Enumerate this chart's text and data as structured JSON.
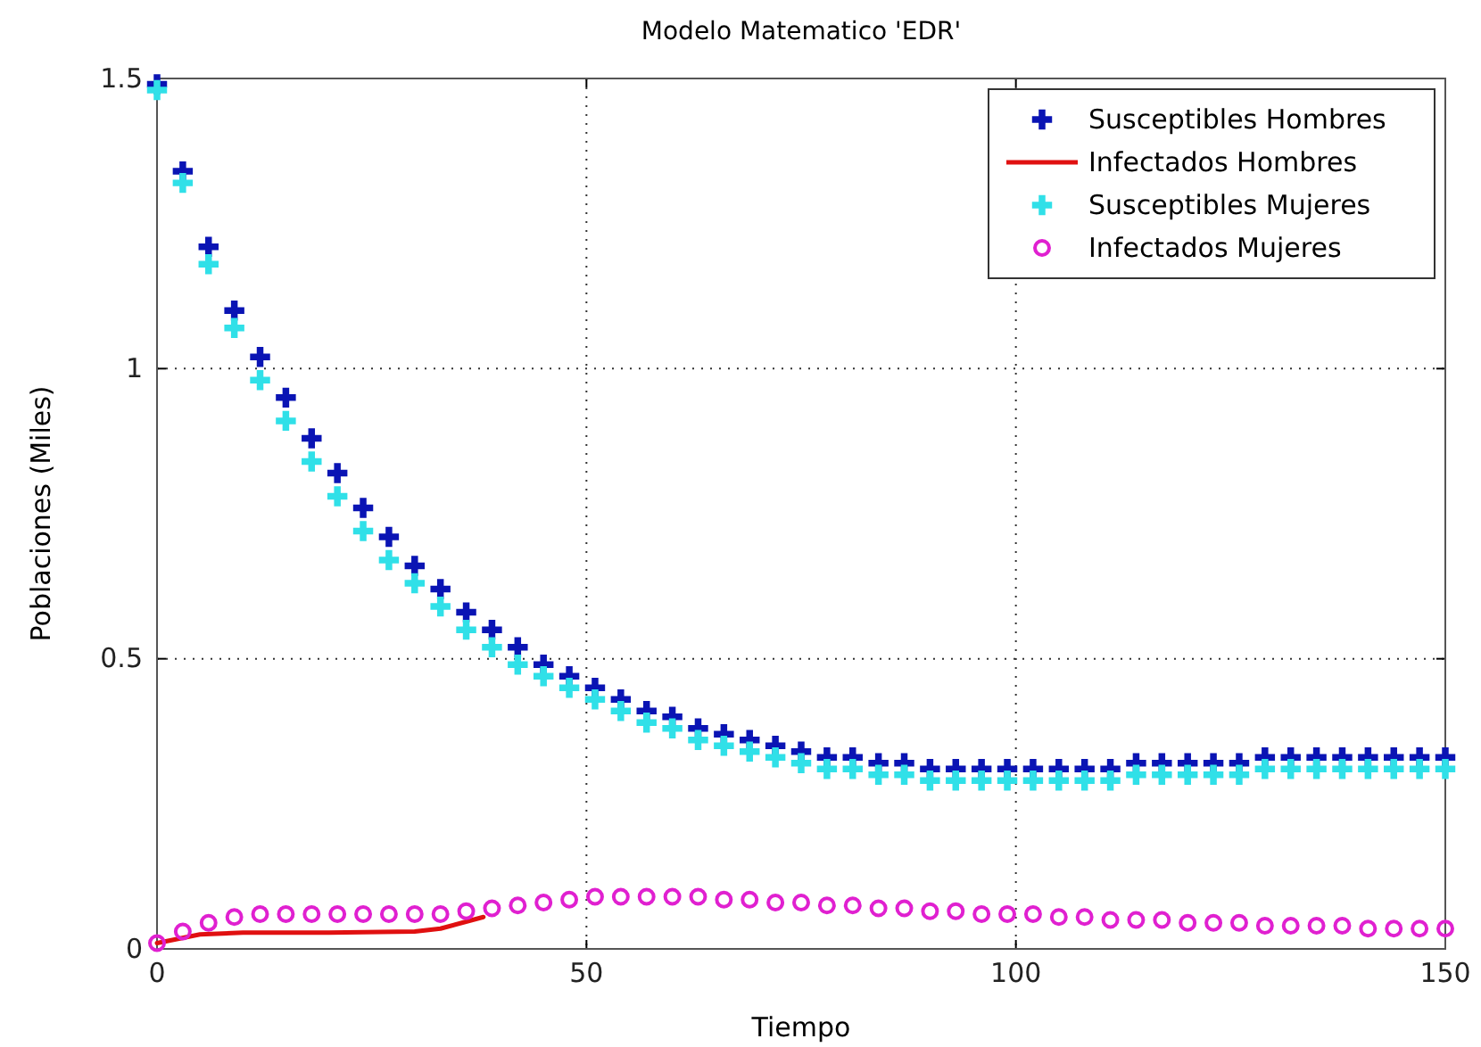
{
  "chart_data": {
    "type": "scatter",
    "title": "Modelo Matematico 'EDR'",
    "xlabel": "Tiempo",
    "ylabel": "Poblaciones (Miles)",
    "xlim": [
      0,
      150
    ],
    "ylim": [
      0,
      1.5
    ],
    "xticks": [
      0,
      50,
      100,
      150
    ],
    "yticks": [
      0,
      0.5,
      1,
      1.5
    ],
    "grid": true,
    "legend": "top right",
    "x": [
      0,
      3,
      6,
      9,
      12,
      15,
      18,
      21,
      24,
      27,
      30,
      33,
      36,
      39,
      42,
      45,
      48,
      51,
      54,
      57,
      60,
      63,
      66,
      69,
      72,
      75,
      78,
      81,
      84,
      87,
      90,
      93,
      96,
      99,
      102,
      105,
      108,
      111,
      114,
      117,
      120,
      123,
      126,
      129,
      132,
      135,
      138,
      141,
      144,
      147,
      150
    ],
    "series": [
      {
        "name": "Susceptibles Hombres",
        "marker": "cross",
        "color": "#0a14b4",
        "values": [
          1.49,
          1.34,
          1.21,
          1.1,
          1.02,
          0.95,
          0.88,
          0.82,
          0.76,
          0.71,
          0.66,
          0.62,
          0.58,
          0.55,
          0.52,
          0.49,
          0.47,
          0.45,
          0.43,
          0.41,
          0.4,
          0.38,
          0.37,
          0.36,
          0.35,
          0.34,
          0.33,
          0.33,
          0.32,
          0.32,
          0.31,
          0.31,
          0.31,
          0.31,
          0.31,
          0.31,
          0.31,
          0.31,
          0.32,
          0.32,
          0.32,
          0.32,
          0.32,
          0.33,
          0.33,
          0.33,
          0.33,
          0.33,
          0.33,
          0.33,
          0.33
        ]
      },
      {
        "name": "Infectados Hombres",
        "type": "line",
        "marker": "none",
        "color": "#e01010",
        "x": [
          0,
          5,
          10,
          20,
          30,
          33,
          38
        ],
        "values": [
          0.01,
          0.025,
          0.028,
          0.028,
          0.03,
          0.035,
          0.055
        ]
      },
      {
        "name": "Susceptibles Mujeres",
        "marker": "cross",
        "color": "#30e0e8",
        "values": [
          1.48,
          1.32,
          1.18,
          1.07,
          0.98,
          0.91,
          0.84,
          0.78,
          0.72,
          0.67,
          0.63,
          0.59,
          0.55,
          0.52,
          0.49,
          0.47,
          0.45,
          0.43,
          0.41,
          0.39,
          0.38,
          0.36,
          0.35,
          0.34,
          0.33,
          0.32,
          0.31,
          0.31,
          0.3,
          0.3,
          0.29,
          0.29,
          0.29,
          0.29,
          0.29,
          0.29,
          0.29,
          0.29,
          0.3,
          0.3,
          0.3,
          0.3,
          0.3,
          0.31,
          0.31,
          0.31,
          0.31,
          0.31,
          0.31,
          0.31,
          0.31
        ]
      },
      {
        "name": "Infectados Mujeres",
        "marker": "circle",
        "color": "#e020d0",
        "values": [
          0.01,
          0.03,
          0.045,
          0.055,
          0.06,
          0.06,
          0.06,
          0.06,
          0.06,
          0.06,
          0.06,
          0.06,
          0.065,
          0.07,
          0.075,
          0.08,
          0.085,
          0.09,
          0.09,
          0.09,
          0.09,
          0.09,
          0.085,
          0.085,
          0.08,
          0.08,
          0.075,
          0.075,
          0.07,
          0.07,
          0.065,
          0.065,
          0.06,
          0.06,
          0.06,
          0.055,
          0.055,
          0.05,
          0.05,
          0.05,
          0.045,
          0.045,
          0.045,
          0.04,
          0.04,
          0.04,
          0.04,
          0.035,
          0.035,
          0.035,
          0.035
        ]
      }
    ]
  }
}
